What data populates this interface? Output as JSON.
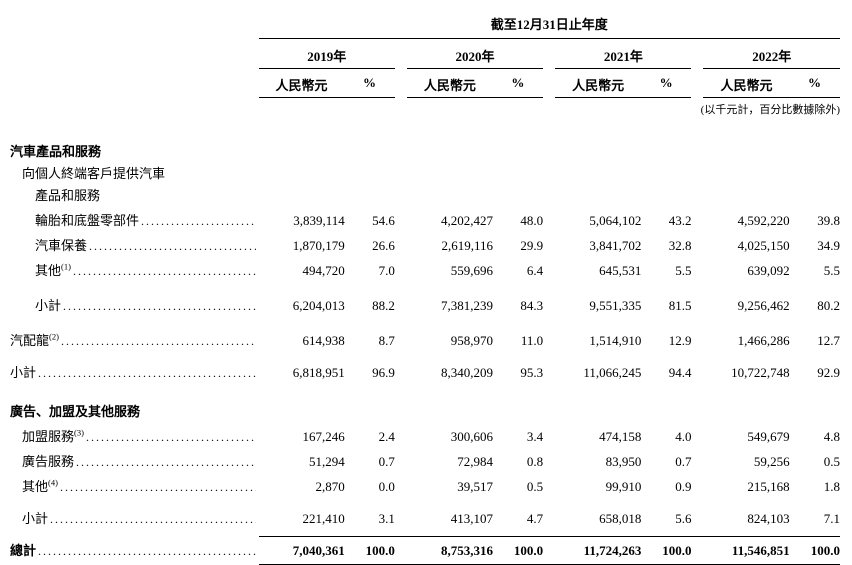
{
  "header": {
    "period_title": "截至12月31日止年度",
    "years": [
      "2019年",
      "2020年",
      "2021年",
      "2022年"
    ],
    "currency_label": "人民幣元",
    "percent_label": "%",
    "units_note": "(以千元計，百分比數據除外)"
  },
  "rows": [
    {
      "label": "汽車產品和服務"
    },
    {
      "label": "向個人終端客戶提供汽車"
    },
    {
      "label": "產品和服務"
    },
    {
      "label": "輪胎和底盤零部件",
      "v": [
        "3,839,114",
        "54.6",
        "4,202,427",
        "48.0",
        "5,064,102",
        "43.2",
        "4,592,220",
        "39.8"
      ]
    },
    {
      "label": "汽車保養",
      "v": [
        "1,870,179",
        "26.6",
        "2,619,116",
        "29.9",
        "3,841,702",
        "32.8",
        "4,025,150",
        "34.9"
      ]
    },
    {
      "label": "其他",
      "sup": "(1)",
      "v": [
        "494,720",
        "7.0",
        "559,696",
        "6.4",
        "645,531",
        "5.5",
        "639,092",
        "5.5"
      ]
    },
    {
      "label": "小計",
      "v": [
        "6,204,013",
        "88.2",
        "7,381,239",
        "84.3",
        "9,551,335",
        "81.5",
        "9,256,462",
        "80.2"
      ]
    },
    {
      "label": "汽配龍",
      "sup": "(2)",
      "v": [
        "614,938",
        "8.7",
        "958,970",
        "11.0",
        "1,514,910",
        "12.9",
        "1,466,286",
        "12.7"
      ]
    },
    {
      "label": "小計",
      "v": [
        "6,818,951",
        "96.9",
        "8,340,209",
        "95.3",
        "11,066,245",
        "94.4",
        "10,722,748",
        "92.9"
      ]
    },
    {
      "label": "廣告、加盟及其他服務"
    },
    {
      "label": "加盟服務",
      "sup": "(3)",
      "v": [
        "167,246",
        "2.4",
        "300,606",
        "3.4",
        "474,158",
        "4.0",
        "549,679",
        "4.8"
      ]
    },
    {
      "label": "廣告服務",
      "v": [
        "51,294",
        "0.7",
        "72,984",
        "0.8",
        "83,950",
        "0.7",
        "59,256",
        "0.5"
      ]
    },
    {
      "label": "其他",
      "sup": "(4)",
      "v": [
        "2,870",
        "0.0",
        "39,517",
        "0.5",
        "99,910",
        "0.9",
        "215,168",
        "1.8"
      ]
    },
    {
      "label": "小計",
      "v": [
        "221,410",
        "3.1",
        "413,107",
        "4.7",
        "658,018",
        "5.6",
        "824,103",
        "7.1"
      ]
    },
    {
      "label": "總計",
      "v": [
        "7,040,361",
        "100.0",
        "8,753,316",
        "100.0",
        "11,724,263",
        "100.0",
        "11,546,851",
        "100.0"
      ]
    }
  ]
}
